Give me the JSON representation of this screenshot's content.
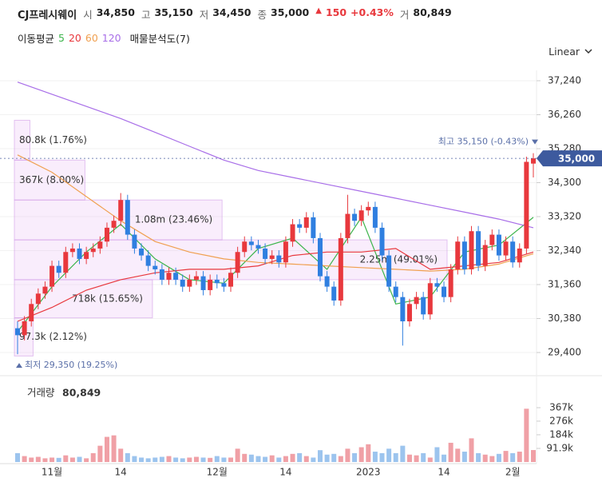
{
  "chart_data": {
    "type": "candlestick",
    "title": "CJ프레시웨이",
    "quote": [
      {
        "label": "시",
        "value": "34,850"
      },
      {
        "label": "고",
        "value": "35,150"
      },
      {
        "label": "저",
        "value": "34,450"
      },
      {
        "label": "종",
        "value": "35,000"
      },
      {
        "label": "거",
        "value": "80,849"
      }
    ],
    "change": "150",
    "change_pct": "+0.43%",
    "ma_title": "이동평균",
    "profile_title": "매물분석도(7)",
    "scale_mode": "Linear",
    "categories": [
      null,
      null,
      null,
      null,
      null,
      "11월",
      null,
      null,
      null,
      null,
      null,
      null,
      null,
      null,
      null,
      "14",
      null,
      null,
      null,
      null,
      null,
      null,
      null,
      null,
      null,
      null,
      null,
      null,
      null,
      "12월",
      null,
      null,
      null,
      null,
      null,
      null,
      null,
      null,
      null,
      "14",
      null,
      null,
      null,
      null,
      null,
      null,
      null,
      null,
      null,
      null,
      null,
      "2023",
      null,
      null,
      null,
      null,
      null,
      null,
      null,
      null,
      null,
      null,
      "14",
      null,
      null,
      null,
      null,
      null,
      null,
      null,
      null,
      null,
      "2월",
      null,
      null,
      null
    ],
    "candles": {
      "open": [
        30100,
        29900,
        30300,
        30800,
        31100,
        31300,
        31900,
        31700,
        32300,
        32400,
        32100,
        32300,
        32400,
        32600,
        33000,
        33200,
        33800,
        32800,
        32400,
        32200,
        31900,
        31800,
        31500,
        31700,
        31500,
        31300,
        31500,
        31600,
        31200,
        31500,
        31400,
        31300,
        31700,
        32300,
        32600,
        32500,
        32400,
        32100,
        32200,
        32000,
        32600,
        33100,
        33000,
        33300,
        32700,
        31600,
        31300,
        30900,
        32700,
        33400,
        33200,
        33500,
        33600,
        33000,
        32200,
        31300,
        31000,
        30300,
        30800,
        31000,
        30500,
        31400,
        31300,
        31000,
        31800,
        32600,
        31800,
        32900,
        31900,
        32500,
        32800,
        32200,
        32600,
        32000,
        32400,
        34850
      ],
      "high": [
        30300,
        30450,
        30950,
        31250,
        31450,
        32050,
        32050,
        32450,
        32550,
        32550,
        32450,
        32550,
        32750,
        33150,
        33350,
        34000,
        33950,
        32950,
        32550,
        32350,
        32050,
        31950,
        31850,
        31850,
        31650,
        31650,
        31750,
        31750,
        31650,
        31650,
        31550,
        31850,
        32450,
        32750,
        32750,
        32650,
        32550,
        32350,
        32350,
        32750,
        33250,
        33250,
        33450,
        33450,
        32850,
        31750,
        31450,
        32850,
        33950,
        33550,
        33650,
        33750,
        33750,
        33150,
        32350,
        31450,
        31150,
        30950,
        31150,
        31150,
        31550,
        31550,
        31450,
        31950,
        32750,
        32750,
        33050,
        33050,
        32650,
        32950,
        32950,
        32750,
        32750,
        32550,
        35050,
        35150
      ],
      "low": [
        29350,
        29750,
        30150,
        30650,
        30950,
        31150,
        31550,
        31550,
        32150,
        31950,
        31950,
        32150,
        32250,
        32450,
        32850,
        33050,
        32650,
        32250,
        32050,
        31750,
        31650,
        31350,
        31350,
        31350,
        31150,
        31150,
        31350,
        31050,
        31050,
        31250,
        31150,
        31150,
        31550,
        32150,
        32350,
        32250,
        31950,
        31950,
        31850,
        31850,
        32450,
        32850,
        32850,
        32550,
        31450,
        31150,
        30750,
        30750,
        32550,
        33050,
        33050,
        33350,
        32850,
        32050,
        31150,
        30850,
        29600,
        30150,
        30650,
        30350,
        30350,
        31150,
        30850,
        30850,
        31650,
        31650,
        31650,
        31750,
        31750,
        32350,
        32050,
        32050,
        31850,
        31850,
        32250,
        34450
      ],
      "close": [
        29900,
        30300,
        30800,
        31100,
        31300,
        31900,
        31700,
        32300,
        32400,
        32100,
        32300,
        32400,
        32600,
        33000,
        33200,
        33800,
        32800,
        32400,
        32200,
        31900,
        31800,
        31500,
        31700,
        31500,
        31300,
        31500,
        31600,
        31200,
        31500,
        31400,
        31300,
        31700,
        32300,
        32600,
        32500,
        32400,
        32100,
        32200,
        32000,
        32600,
        33100,
        33000,
        33300,
        32700,
        31600,
        31300,
        30900,
        32700,
        33400,
        33200,
        33500,
        33600,
        33000,
        32200,
        31300,
        31000,
        30300,
        30800,
        31000,
        30500,
        31400,
        31300,
        31000,
        31800,
        32600,
        31800,
        32900,
        31900,
        32500,
        32800,
        32200,
        32600,
        32000,
        32400,
        34900,
        35000
      ],
      "up_color": "#e8383d",
      "down_color": "#2f7fe0"
    },
    "ylim": [
      28990,
      37540
    ],
    "yticks": [
      {
        "value": 29400,
        "label": "29,400"
      },
      {
        "value": 30380,
        "label": "30,380"
      },
      {
        "value": 31360,
        "label": "31,360"
      },
      {
        "value": 32340,
        "label": "32,340"
      },
      {
        "value": 33320,
        "label": "33,320"
      },
      {
        "value": 34300,
        "label": "34,300"
      },
      {
        "value": 35280,
        "label": "35,280"
      },
      {
        "value": 36260,
        "label": "36,260"
      },
      {
        "value": 37240,
        "label": "37,240"
      }
    ],
    "grid": true,
    "ma_x": [
      0,
      5,
      10,
      15,
      20,
      25,
      30,
      35,
      40,
      45,
      50,
      55,
      60,
      65,
      70,
      75
    ],
    "ma_series": [
      {
        "name": "5",
        "color": "#3cb44b",
        "values": [
          30000,
          31300,
          32300,
          33100,
          32100,
          31500,
          31400,
          32400,
          32700,
          31800,
          33300,
          30800,
          31000,
          32300,
          32500,
          33300
        ]
      },
      {
        "name": "20",
        "color": "#e8383d",
        "values": [
          30300,
          30700,
          31200,
          31500,
          31700,
          31800,
          31800,
          31900,
          32200,
          32300,
          32300,
          32400,
          31800,
          31900,
          32000,
          32300
        ]
      },
      {
        "name": "60",
        "color": "#f0a050",
        "values": [
          35100,
          34600,
          33900,
          33200,
          32600,
          32300,
          32100,
          32000,
          31950,
          31900,
          31850,
          31800,
          31750,
          31800,
          31950,
          32250
        ]
      },
      {
        "name": "120",
        "color": "#a86ee8",
        "values": [
          37200,
          36850,
          36500,
          36150,
          35750,
          35350,
          34950,
          34650,
          34450,
          34250,
          34050,
          33850,
          33650,
          33450,
          33250,
          33000
        ]
      }
    ],
    "profile": {
      "bins": [
        29300,
        30400,
        31500,
        32650,
        33800,
        34950,
        36100
      ],
      "values": [
        97300,
        718000,
        2250000,
        1080000,
        367000,
        80800
      ],
      "value_labels": [
        "97.3k (2.12%)",
        "718k (15.65%)",
        "2.25m (49.01%)",
        "1.08m (23.46%)",
        "367k (8.00%)",
        "80.8k (1.76%)"
      ]
    },
    "annotations": {
      "high": "최고 35,150 (-0.43%)",
      "low": "최저 29,350 (19.25%)"
    },
    "volume": {
      "title": "거래량",
      "values": [
        60000,
        40000,
        30000,
        35000,
        25000,
        30000,
        28000,
        45000,
        30000,
        35000,
        25000,
        60000,
        110000,
        170000,
        180000,
        90000,
        60000,
        40000,
        30000,
        25000,
        30000,
        35000,
        40000,
        30000,
        25000,
        30000,
        35000,
        30000,
        28000,
        40000,
        30000,
        30000,
        90000,
        55000,
        50000,
        40000,
        35000,
        45000,
        30000,
        40000,
        55000,
        60000,
        40000,
        30000,
        80000,
        50000,
        55000,
        40000,
        90000,
        60000,
        100000,
        120000,
        70000,
        60000,
        90000,
        60000,
        110000,
        50000,
        45000,
        60000,
        30000,
        100000,
        50000,
        130000,
        90000,
        70000,
        160000,
        60000,
        50000,
        40000,
        55000,
        75000,
        60000,
        70000,
        360000,
        80849
      ],
      "ylim": [
        0,
        540000
      ],
      "yticks": [
        {
          "value": 91900,
          "label": "91.9k"
        },
        {
          "value": 184000,
          "label": "184k"
        },
        {
          "value": 276000,
          "label": "276k"
        },
        {
          "value": 367000,
          "label": "367k"
        }
      ],
      "up_color": "#f0a0a6",
      "down_color": "#9cc4ee"
    }
  }
}
